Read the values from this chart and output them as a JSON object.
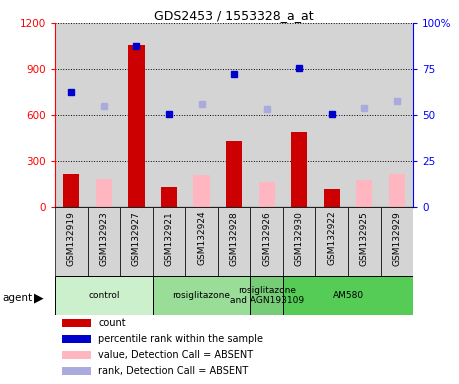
{
  "title": "GDS2453 / 1553328_a_at",
  "samples": [
    "GSM132919",
    "GSM132923",
    "GSM132927",
    "GSM132921",
    "GSM132924",
    "GSM132928",
    "GSM132926",
    "GSM132930",
    "GSM132922",
    "GSM132925",
    "GSM132929"
  ],
  "counts_present": [
    220,
    null,
    1060,
    130,
    null,
    430,
    null,
    490,
    120,
    null,
    null
  ],
  "counts_absent": [
    null,
    185,
    null,
    null,
    210,
    null,
    165,
    null,
    null,
    175,
    215
  ],
  "ranks_present": [
    750,
    null,
    1050,
    610,
    null,
    870,
    null,
    905,
    610,
    null,
    null
  ],
  "ranks_absent": [
    null,
    660,
    null,
    null,
    670,
    null,
    640,
    null,
    null,
    650,
    690
  ],
  "ylim_left": [
    0,
    1200
  ],
  "ylim_right": [
    0,
    100
  ],
  "yticks_left": [
    0,
    300,
    600,
    900,
    1200
  ],
  "yticks_right": [
    0,
    25,
    50,
    75,
    100
  ],
  "bar_color_present": "#cc0000",
  "bar_color_absent": "#ffb6c1",
  "dot_color_present": "#0000cc",
  "dot_color_absent": "#aaaadd",
  "agent_groups": [
    {
      "label": "control",
      "start": 0,
      "end": 3,
      "color": "#ccf0cc"
    },
    {
      "label": "rosiglitazone",
      "start": 3,
      "end": 6,
      "color": "#99dd99"
    },
    {
      "label": "rosiglitazone\nand AGN193109",
      "start": 6,
      "end": 7,
      "color": "#77cc77"
    },
    {
      "label": "AM580",
      "start": 7,
      "end": 11,
      "color": "#55cc55"
    }
  ],
  "legend_items": [
    {
      "label": "count",
      "color": "#cc0000"
    },
    {
      "label": "percentile rank within the sample",
      "color": "#0000cc"
    },
    {
      "label": "value, Detection Call = ABSENT",
      "color": "#ffb6c1"
    },
    {
      "label": "rank, Detection Call = ABSENT",
      "color": "#aaaadd"
    }
  ],
  "plot_bg_color": "#ffffff",
  "col_bg_color": "#d4d4d4"
}
